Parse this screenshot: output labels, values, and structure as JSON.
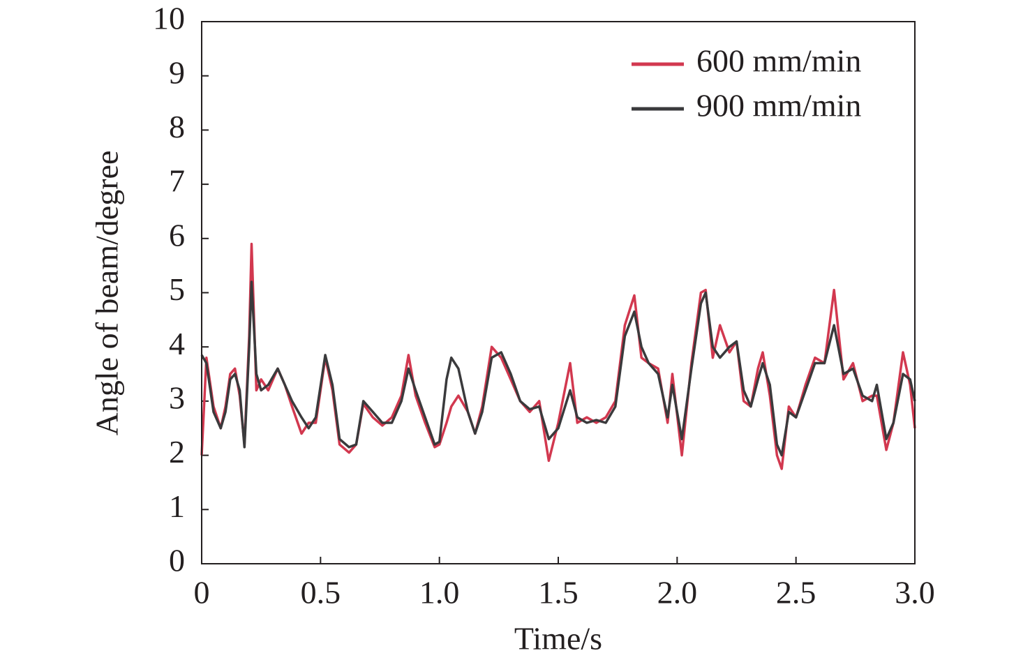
{
  "chart_data": {
    "type": "line",
    "xlabel": "Time/s",
    "ylabel": "Angle of beam/degree",
    "xlim": [
      0,
      3
    ],
    "ylim": [
      0,
      10
    ],
    "xticks": [
      0,
      0.5,
      {
        "value": 1,
        "label": "1.0"
      },
      1.5,
      {
        "value": 2,
        "label": "2.0"
      },
      2.5,
      {
        "value": 3,
        "label": "3.0"
      }
    ],
    "yticks": [
      0,
      1,
      2,
      3,
      4,
      5,
      6,
      7,
      8,
      9,
      10
    ],
    "legend": "upper right",
    "x": [
      0,
      0.02,
      0.05,
      0.08,
      0.1,
      0.12,
      0.14,
      0.16,
      0.18,
      0.2,
      0.21,
      0.23,
      0.25,
      0.28,
      0.32,
      0.35,
      0.38,
      0.42,
      0.45,
      0.48,
      0.52,
      0.55,
      0.58,
      0.62,
      0.65,
      0.68,
      0.72,
      0.76,
      0.8,
      0.84,
      0.87,
      0.9,
      0.94,
      0.98,
      1.0,
      1.03,
      1.05,
      1.08,
      1.12,
      1.15,
      1.18,
      1.22,
      1.26,
      1.3,
      1.34,
      1.38,
      1.42,
      1.46,
      1.5,
      1.55,
      1.58,
      1.62,
      1.66,
      1.7,
      1.74,
      1.78,
      1.82,
      1.85,
      1.88,
      1.92,
      1.96,
      1.98,
      2.02,
      2.06,
      2.1,
      2.12,
      2.15,
      2.18,
      2.22,
      2.25,
      2.28,
      2.31,
      2.34,
      2.36,
      2.39,
      2.42,
      2.44,
      2.47,
      2.5,
      2.54,
      2.58,
      2.62,
      2.66,
      2.7,
      2.74,
      2.78,
      2.82,
      2.84,
      2.88,
      2.91,
      2.95,
      2.98,
      3.0
    ],
    "series": [
      {
        "name": "600 mm/min",
        "color": "#d2384f",
        "values": [
          2.0,
          3.8,
          2.9,
          2.5,
          2.9,
          3.5,
          3.6,
          3.1,
          2.2,
          4.2,
          5.9,
          3.2,
          3.4,
          3.2,
          3.6,
          3.3,
          2.9,
          2.4,
          2.6,
          2.6,
          3.8,
          3.2,
          2.2,
          2.05,
          2.2,
          2.95,
          2.7,
          2.55,
          2.7,
          3.1,
          3.85,
          3.1,
          2.6,
          2.15,
          2.2,
          2.6,
          2.9,
          3.1,
          2.8,
          2.4,
          2.9,
          4.0,
          3.8,
          3.4,
          3.0,
          2.8,
          3.0,
          1.9,
          2.6,
          3.7,
          2.6,
          2.7,
          2.6,
          2.7,
          3.0,
          4.4,
          4.95,
          3.8,
          3.7,
          3.6,
          2.6,
          3.5,
          2.0,
          3.7,
          5.0,
          5.05,
          3.8,
          4.4,
          3.9,
          4.1,
          3.0,
          2.9,
          3.6,
          3.9,
          3.1,
          2.0,
          1.75,
          2.9,
          2.7,
          3.3,
          3.8,
          3.7,
          5.05,
          3.4,
          3.7,
          3.0,
          3.1,
          3.1,
          2.1,
          2.6,
          3.9,
          3.3,
          2.5
        ]
      },
      {
        "name": "900 mm/min",
        "color": "#3a3a3c",
        "values": [
          3.85,
          3.7,
          2.8,
          2.5,
          2.8,
          3.4,
          3.5,
          3.2,
          2.15,
          4.0,
          5.2,
          3.5,
          3.2,
          3.3,
          3.6,
          3.3,
          3.0,
          2.7,
          2.5,
          2.7,
          3.85,
          3.3,
          2.3,
          2.15,
          2.2,
          3.0,
          2.8,
          2.6,
          2.6,
          3.0,
          3.6,
          3.2,
          2.7,
          2.2,
          2.25,
          3.4,
          3.8,
          3.6,
          2.8,
          2.4,
          2.8,
          3.8,
          3.9,
          3.5,
          3.0,
          2.85,
          2.9,
          2.3,
          2.5,
          3.2,
          2.7,
          2.6,
          2.65,
          2.6,
          2.9,
          4.2,
          4.65,
          4.0,
          3.7,
          3.5,
          2.7,
          3.3,
          2.3,
          3.6,
          4.8,
          5.0,
          4.0,
          3.8,
          4.0,
          4.1,
          3.2,
          2.9,
          3.4,
          3.7,
          3.3,
          2.2,
          2.0,
          2.8,
          2.7,
          3.2,
          3.7,
          3.7,
          4.4,
          3.5,
          3.6,
          3.1,
          3.0,
          3.3,
          2.3,
          2.6,
          3.5,
          3.4,
          3.0
        ]
      }
    ]
  }
}
